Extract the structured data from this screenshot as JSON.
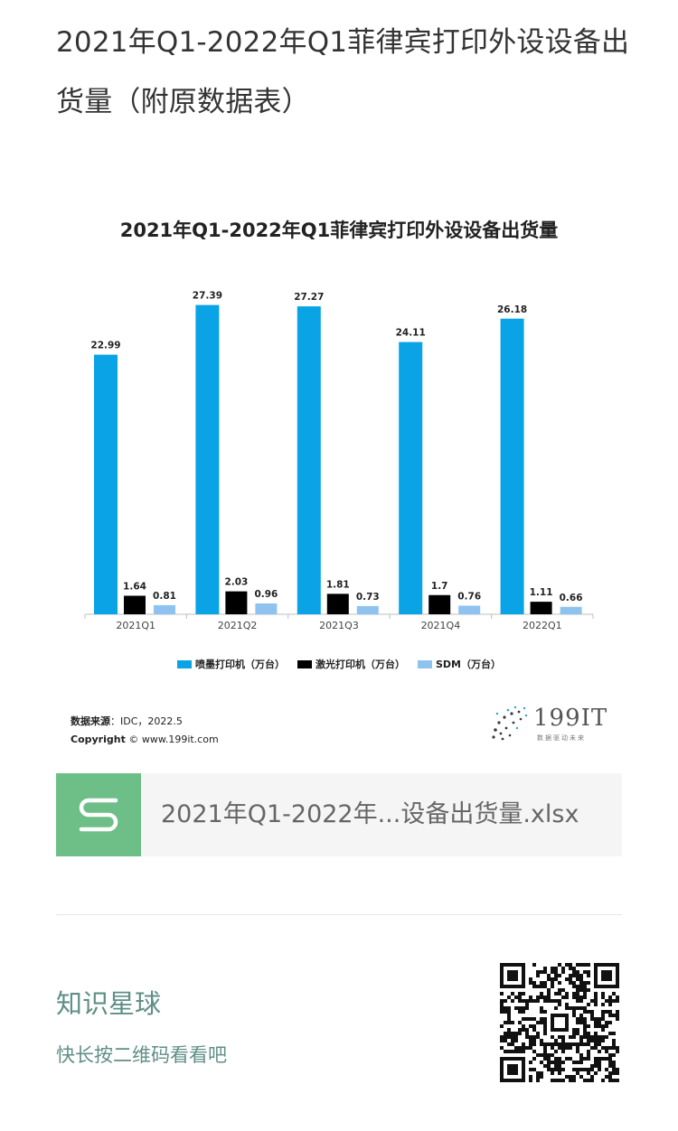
{
  "article": {
    "title": "2021年Q1-2022年Q1菲律宾打印外设设备出货量（附原数据表）"
  },
  "chart_data": {
    "type": "bar",
    "title": "2021年Q1-2022年Q1菲律宾打印外设设备出货量",
    "categories": [
      "2021Q1",
      "2021Q2",
      "2021Q3",
      "2021Q4",
      "2022Q1"
    ],
    "series": [
      {
        "name": "喷墨打印机（万台）",
        "values": [
          22.99,
          27.39,
          27.27,
          24.11,
          26.18
        ],
        "labels": [
          "22.99",
          "27.39",
          "27.27",
          "24.11",
          "26.18"
        ],
        "color": "#0aa3e6"
      },
      {
        "name": "激光打印机（万台）",
        "values": [
          1.64,
          2.03,
          1.81,
          1.7,
          1.11
        ],
        "labels": [
          "1.64",
          "2.03",
          "1.81",
          "1.7",
          "1.11"
        ],
        "color": "#000000"
      },
      {
        "name": "SDM（万台）",
        "values": [
          0.81,
          0.96,
          0.73,
          0.76,
          0.66
        ],
        "labels": [
          "0.81",
          "0.96",
          "0.73",
          "0.76",
          "0.66"
        ],
        "color": "#8ec3f0"
      }
    ],
    "ylim": [
      0,
      30
    ],
    "grid": false,
    "legend_position": "bottom"
  },
  "source": {
    "label": "数据来源",
    "value": "：IDC，2022.5",
    "copyright_label": "Copyright",
    "copyright_value": "© www.199it.com"
  },
  "logo": {
    "text": "199IT",
    "sub": "数据驱动未来"
  },
  "file": {
    "name": "2021年Q1-2022年...设备出货量.xlsx",
    "icon": "spreadsheet-s-icon"
  },
  "planet": {
    "title": "知识星球",
    "subtitle": "快长按二维码看看吧",
    "qr_icon": "qr-code-icon"
  }
}
